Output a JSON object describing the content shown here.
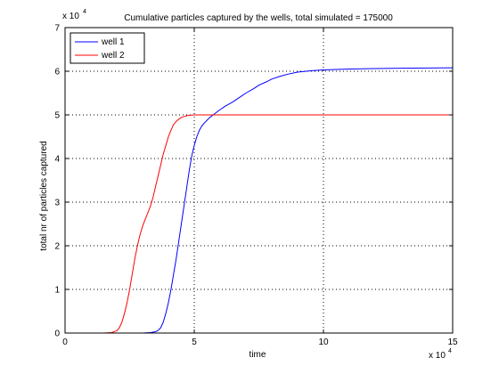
{
  "chart_data": {
    "type": "line",
    "title": "Cumulative particles captured by the wells, total simulated = 175000",
    "xlabel": "time",
    "ylabel": "total nr of particles captured",
    "x_exponent_label": "x 10",
    "x_exponent_power": "4",
    "y_exponent_label": "x 10",
    "y_exponent_power": "4",
    "xlim": [
      0,
      150000
    ],
    "ylim": [
      0,
      70000
    ],
    "x_ticks": [
      0,
      50000,
      100000,
      150000
    ],
    "x_tick_labels": [
      "0",
      "5",
      "10",
      "15"
    ],
    "y_ticks": [
      0,
      10000,
      20000,
      30000,
      40000,
      50000,
      60000,
      70000
    ],
    "y_tick_labels": [
      "0",
      "1",
      "2",
      "3",
      "4",
      "5",
      "6",
      "7"
    ],
    "grid": true,
    "legend_position": "top-left",
    "series": [
      {
        "name": "well 1",
        "color": "#0000ff",
        "x": [
          0,
          30000,
          33000,
          35000,
          36000,
          37000,
          38000,
          39000,
          40000,
          41000,
          42000,
          43000,
          44000,
          45000,
          46000,
          47000,
          48000,
          49000,
          50000,
          51000,
          52000,
          53000,
          54000,
          55000,
          56000,
          58000,
          60000,
          62000,
          65000,
          68000,
          70000,
          73000,
          75000,
          78000,
          80000,
          83000,
          86000,
          90000,
          95000,
          100000,
          105000,
          110000,
          120000,
          130000,
          140000,
          150000
        ],
        "y": [
          0,
          0,
          100,
          300,
          600,
          1200,
          2500,
          4500,
          7000,
          10000,
          13500,
          17000,
          21000,
          25000,
          29000,
          33000,
          37000,
          40500,
          43000,
          45000,
          46500,
          47500,
          48200,
          48800,
          49400,
          50300,
          51200,
          52000,
          53000,
          54200,
          55000,
          56000,
          56800,
          57600,
          58200,
          58800,
          59300,
          59800,
          60100,
          60300,
          60400,
          60500,
          60600,
          60700,
          60750,
          60800
        ]
      },
      {
        "name": "well 2",
        "color": "#ff0000",
        "x": [
          0,
          15000,
          18000,
          20000,
          21000,
          22000,
          23000,
          24000,
          25000,
          26000,
          27000,
          28000,
          29000,
          30000,
          31000,
          32000,
          33000,
          34000,
          35000,
          36000,
          37000,
          38000,
          39000,
          40000,
          41000,
          42000,
          43000,
          44000,
          45000,
          46000,
          47000,
          48000,
          49000,
          50000,
          52000,
          55000,
          60000,
          70000,
          80000,
          100000,
          150000
        ],
        "y": [
          0,
          0,
          100,
          500,
          1200,
          2500,
          4500,
          7000,
          10000,
          13500,
          17000,
          20000,
          22500,
          24500,
          26000,
          27500,
          29000,
          31000,
          33500,
          36000,
          38500,
          41000,
          43000,
          45000,
          46500,
          47800,
          48500,
          49000,
          49400,
          49600,
          49800,
          49900,
          49950,
          50000,
          50000,
          50000,
          50000,
          50000,
          50000,
          50000,
          50000
        ]
      }
    ]
  }
}
